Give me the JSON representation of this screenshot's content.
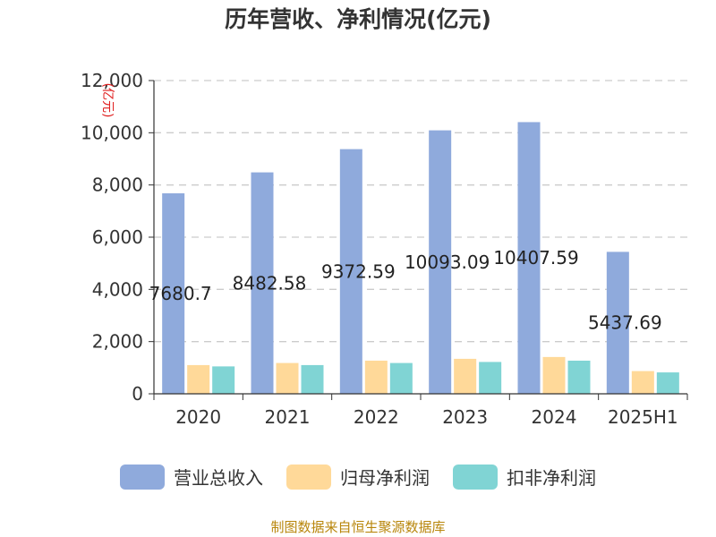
{
  "chart_data": {
    "type": "bar",
    "title": "历年营收、净利情况(亿元)",
    "unit_label": "(亿元)",
    "categories": [
      "2020",
      "2021",
      "2022",
      "2023",
      "2024",
      "2025H1"
    ],
    "ylim": [
      0,
      12000
    ],
    "yticks": [
      "0",
      "2,000",
      "4,000",
      "6,000",
      "8,000",
      "10,000",
      "12,000"
    ],
    "grid": true,
    "legend_position": "bottom",
    "series": [
      {
        "name": "营业总收入",
        "color": "#8faadc",
        "values": [
          7680.7,
          8482.58,
          9372.59,
          10093.09,
          10407.59,
          5437.69
        ]
      },
      {
        "name": "归母净利润",
        "color": "#ffd999",
        "values": [
          1100,
          1180,
          1270,
          1340,
          1410,
          870
        ]
      },
      {
        "name": "扣非净利润",
        "color": "#80d4d4",
        "values": [
          1050,
          1100,
          1180,
          1220,
          1270,
          820
        ]
      }
    ],
    "data_labels": [
      "7680.7",
      "8482.58",
      "9372.59",
      "10093.09",
      "10407.59",
      "5437.69"
    ]
  },
  "source_note": "制图数据来自恒生聚源数据库"
}
